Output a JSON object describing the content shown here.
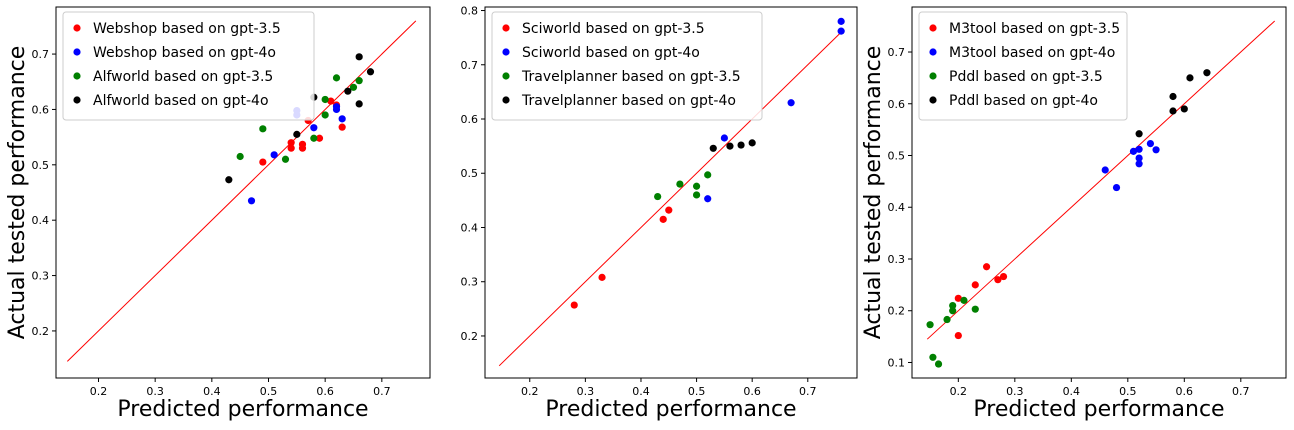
{
  "chart_data": [
    {
      "type": "scatter",
      "xlabel": "Predicted performance",
      "ylabel": "Actual tested performance",
      "xlim": [
        0.125,
        0.785
      ],
      "ylim": [
        0.115,
        0.785
      ],
      "xticks": [
        "0.2",
        "0.3",
        "0.4",
        "0.5",
        "0.6",
        "0.7"
      ],
      "yticks": [
        "0.2",
        "0.3",
        "0.4",
        "0.5",
        "0.6",
        "0.7"
      ],
      "diagonal": {
        "from": 0.145,
        "to": 0.76,
        "color": "#ff0000"
      },
      "legend_position": "top-left",
      "series": [
        {
          "name": "Webshop based on gpt-3.5",
          "color": "#ff0000",
          "points": [
            [
              0.49,
              0.505
            ],
            [
              0.54,
              0.54
            ],
            [
              0.54,
              0.53
            ],
            [
              0.56,
              0.537
            ],
            [
              0.56,
              0.53
            ],
            [
              0.57,
              0.58
            ],
            [
              0.59,
              0.548
            ],
            [
              0.61,
              0.615
            ],
            [
              0.62,
              0.608
            ],
            [
              0.63,
              0.568
            ]
          ]
        },
        {
          "name": "Webshop based on gpt-4o",
          "color": "#0000ff",
          "points": [
            [
              0.47,
              0.435
            ],
            [
              0.51,
              0.518
            ],
            [
              0.55,
              0.598
            ],
            [
              0.55,
              0.59
            ],
            [
              0.58,
              0.567
            ],
            [
              0.62,
              0.605
            ],
            [
              0.62,
              0.6
            ],
            [
              0.63,
              0.583
            ]
          ]
        },
        {
          "name": "Alfworld based on gpt-3.5",
          "color": "#008000",
          "points": [
            [
              0.45,
              0.515
            ],
            [
              0.49,
              0.565
            ],
            [
              0.53,
              0.51
            ],
            [
              0.58,
              0.548
            ],
            [
              0.6,
              0.59
            ],
            [
              0.6,
              0.618
            ],
            [
              0.62,
              0.657
            ],
            [
              0.65,
              0.64
            ],
            [
              0.66,
              0.652
            ]
          ]
        },
        {
          "name": "Alfworld based on gpt-4o",
          "color": "#000000",
          "points": [
            [
              0.43,
              0.473
            ],
            [
              0.55,
              0.555
            ],
            [
              0.58,
              0.622
            ],
            [
              0.64,
              0.633
            ],
            [
              0.66,
              0.61
            ],
            [
              0.66,
              0.695
            ],
            [
              0.68,
              0.668
            ]
          ]
        }
      ]
    },
    {
      "type": "scatter",
      "xlabel": "Predicted performance",
      "ylabel": "",
      "xlim": [
        0.1195,
        0.7885
      ],
      "ylim": [
        0.1225,
        0.8065
      ],
      "xticks": [
        "0.2",
        "0.3",
        "0.4",
        "0.5",
        "0.6",
        "0.7"
      ],
      "yticks": [
        "0.2",
        "0.3",
        "0.4",
        "0.5",
        "0.6",
        "0.7",
        "0.8"
      ],
      "diagonal": {
        "from": 0.145,
        "to": 0.765,
        "color": "#ff0000"
      },
      "legend_position": "top-left",
      "series": [
        {
          "name": "Sciworld based on gpt-3.5",
          "color": "#ff0000",
          "points": [
            [
              0.28,
              0.257
            ],
            [
              0.33,
              0.308
            ],
            [
              0.44,
              0.415
            ],
            [
              0.45,
              0.432
            ]
          ]
        },
        {
          "name": "Sciworld based on gpt-4o",
          "color": "#0000ff",
          "points": [
            [
              0.52,
              0.453
            ],
            [
              0.55,
              0.565
            ],
            [
              0.67,
              0.63
            ],
            [
              0.76,
              0.78
            ],
            [
              0.76,
              0.762
            ]
          ]
        },
        {
          "name": "Travelplanner based on gpt-3.5",
          "color": "#008000",
          "points": [
            [
              0.43,
              0.457
            ],
            [
              0.47,
              0.48
            ],
            [
              0.5,
              0.476
            ],
            [
              0.5,
              0.46
            ],
            [
              0.52,
              0.497
            ]
          ]
        },
        {
          "name": "Travelplanner based on gpt-4o",
          "color": "#000000",
          "points": [
            [
              0.53,
              0.546
            ],
            [
              0.56,
              0.55
            ],
            [
              0.58,
              0.552
            ],
            [
              0.6,
              0.556
            ]
          ]
        }
      ]
    },
    {
      "type": "scatter",
      "xlabel": "Predicted performance",
      "ylabel": "Actual tested performance",
      "xlim": [
        0.118,
        0.78
      ],
      "ylim": [
        0.07,
        0.787
      ],
      "xticks": [
        "0.2",
        "0.3",
        "0.4",
        "0.5",
        "0.6",
        "0.7"
      ],
      "yticks": [
        "0.1",
        "0.2",
        "0.3",
        "0.4",
        "0.5",
        "0.6",
        "0.7"
      ],
      "diagonal": {
        "from": 0.145,
        "to": 0.76,
        "color": "#ff0000"
      },
      "legend_position": "top-left",
      "series": [
        {
          "name": "M3tool based on gpt-3.5",
          "color": "#ff0000",
          "points": [
            [
              0.2,
              0.224
            ],
            [
              0.2,
              0.152
            ],
            [
              0.23,
              0.25
            ],
            [
              0.25,
              0.285
            ],
            [
              0.27,
              0.26
            ],
            [
              0.28,
              0.266
            ]
          ]
        },
        {
          "name": "M3tool based on gpt-4o",
          "color": "#0000ff",
          "points": [
            [
              0.46,
              0.472
            ],
            [
              0.48,
              0.438
            ],
            [
              0.51,
              0.508
            ],
            [
              0.52,
              0.512
            ],
            [
              0.52,
              0.495
            ],
            [
              0.52,
              0.484
            ],
            [
              0.54,
              0.523
            ],
            [
              0.55,
              0.511
            ]
          ]
        },
        {
          "name": "Pddl based on gpt-3.5",
          "color": "#008000",
          "points": [
            [
              0.15,
              0.173
            ],
            [
              0.155,
              0.11
            ],
            [
              0.165,
              0.097
            ],
            [
              0.18,
              0.183
            ],
            [
              0.19,
              0.2
            ],
            [
              0.19,
              0.21
            ],
            [
              0.21,
              0.22
            ],
            [
              0.23,
              0.203
            ]
          ]
        },
        {
          "name": "Pddl based on gpt-4o",
          "color": "#000000",
          "points": [
            [
              0.52,
              0.542
            ],
            [
              0.58,
              0.614
            ],
            [
              0.58,
              0.586
            ],
            [
              0.6,
              0.59
            ],
            [
              0.61,
              0.65
            ],
            [
              0.64,
              0.66
            ]
          ]
        }
      ]
    }
  ]
}
